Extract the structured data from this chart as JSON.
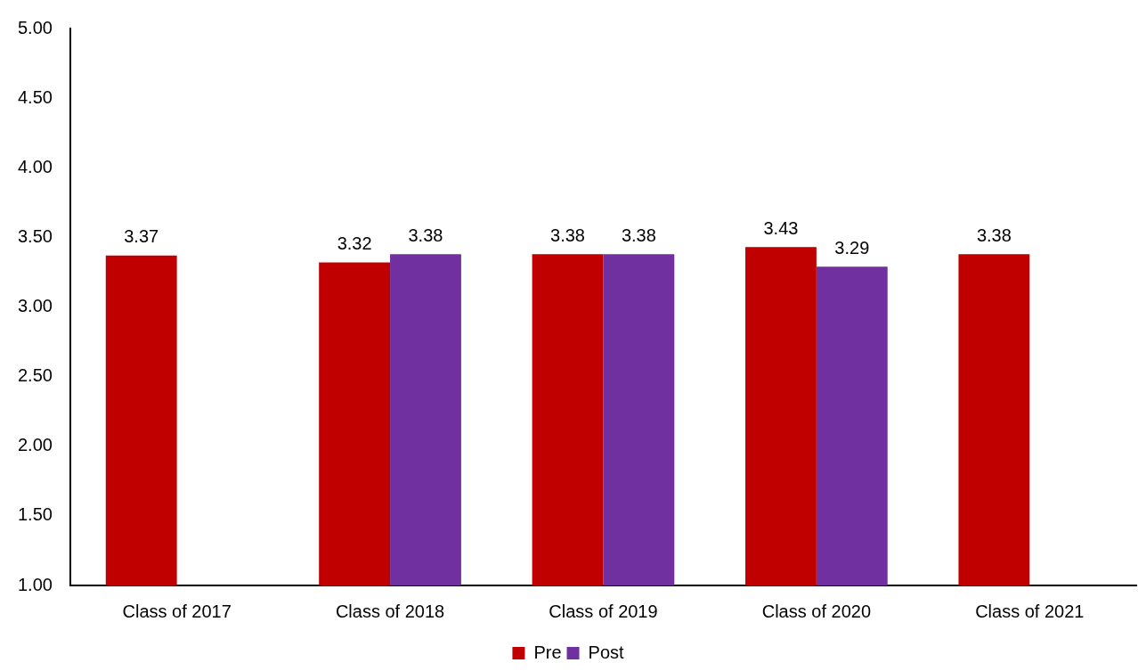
{
  "chart_data": {
    "type": "bar",
    "categories": [
      "Class of 2017",
      "Class of 2018",
      "Class of 2019",
      "Class of 2020",
      "Class of 2021"
    ],
    "series": [
      {
        "name": "Pre",
        "color": "#c00000",
        "values": [
          3.37,
          3.32,
          3.38,
          3.43,
          3.38
        ]
      },
      {
        "name": "Post",
        "color": "#7030a0",
        "values": [
          null,
          3.38,
          3.38,
          3.29,
          null
        ]
      }
    ],
    "ylim": [
      1,
      5
    ],
    "yticks": [
      {
        "value": 1,
        "label": "1.00"
      },
      {
        "value": 1.5,
        "label": "1.50"
      },
      {
        "value": 2,
        "label": "2.00"
      },
      {
        "value": 2.5,
        "label": "2.50"
      },
      {
        "value": 3,
        "label": "3.00"
      },
      {
        "value": 3.5,
        "label": "3.50"
      },
      {
        "value": 4,
        "label": "4.00"
      },
      {
        "value": 4.5,
        "label": "4.50"
      },
      {
        "value": 5,
        "label": "5.00"
      }
    ],
    "grid": false,
    "legend": "bottom",
    "data_labels": true
  }
}
